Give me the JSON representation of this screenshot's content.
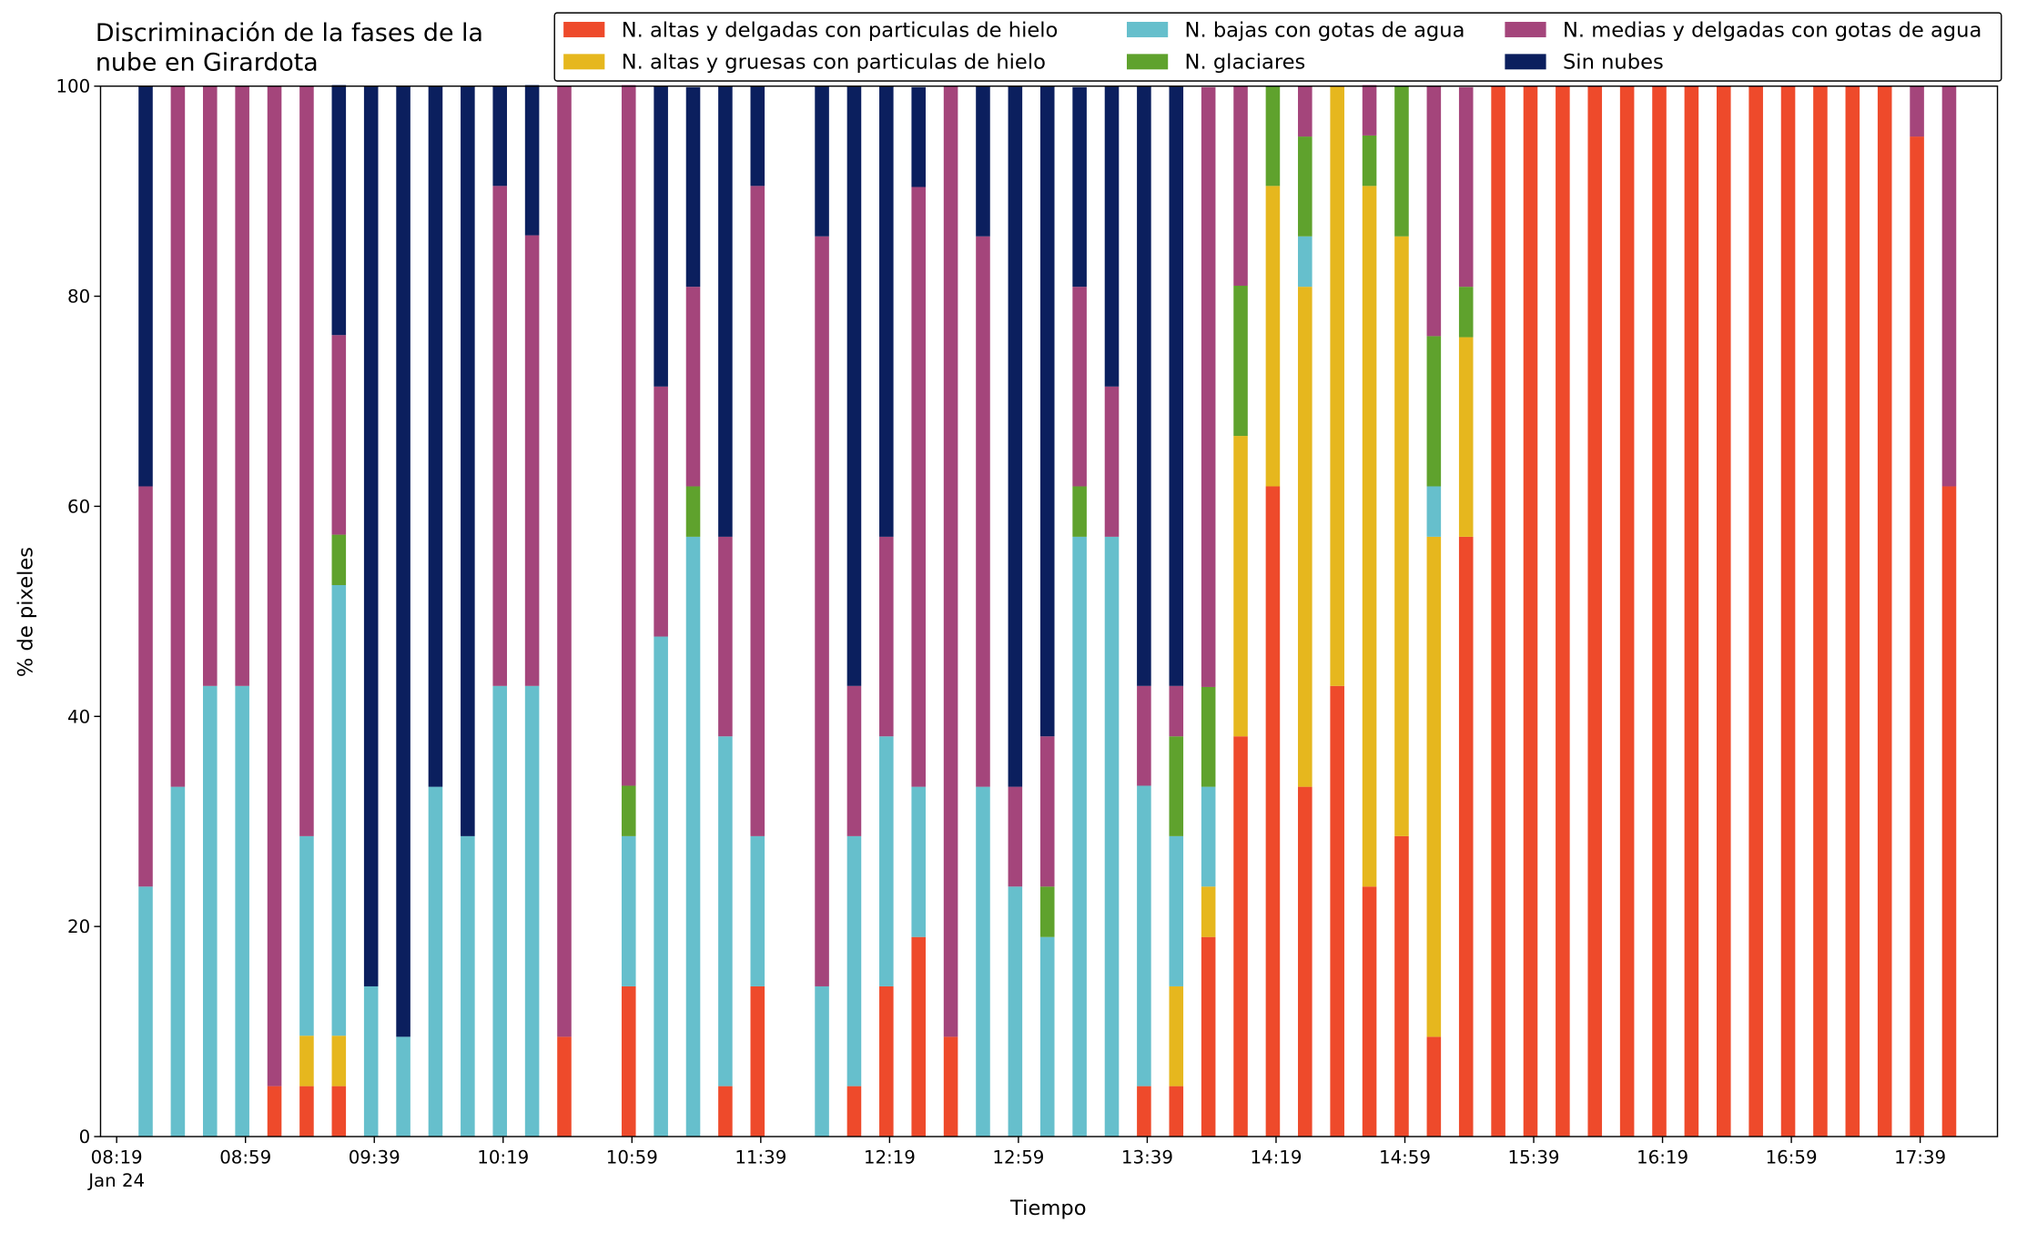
{
  "chart_data": {
    "type": "stacked_bar",
    "title": "Discriminación de la fases de la nube en Girardota",
    "xlabel": "Tiempo",
    "ylabel": "% de pixeles",
    "x": [
      "08:28",
      "08:38",
      "08:48",
      "08:58",
      "09:08",
      "09:18",
      "09:28",
      "09:38",
      "09:48",
      "09:58",
      "10:08",
      "10:18",
      "10:28",
      "10:38",
      "10:48",
      "10:58",
      "11:08",
      "11:18",
      "11:28",
      "11:38",
      "11:48",
      "11:58",
      "12:08",
      "12:18",
      "12:28",
      "12:38",
      "12:48",
      "12:58",
      "13:08",
      "13:18",
      "13:28",
      "13:38",
      "13:48",
      "13:58",
      "14:08",
      "14:18",
      "14:28",
      "14:38",
      "14:48",
      "14:58",
      "15:08",
      "15:18",
      "15:28",
      "15:38",
      "15:48",
      "15:58",
      "16:08",
      "16:18",
      "16:28",
      "16:38",
      "16:48",
      "16:58",
      "17:08",
      "17:18",
      "17:28",
      "17:38",
      "17:48"
    ],
    "xlim": [
      "08:14",
      "18:03"
    ],
    "xticks": [
      "08:19",
      "08:59",
      "09:39",
      "10:19",
      "10:59",
      "11:39",
      "12:19",
      "12:59",
      "13:39",
      "14:19",
      "14:59",
      "15:39",
      "16:19",
      "16:59",
      "17:39"
    ],
    "xtick_date": "Jan 24",
    "ylim": [
      0,
      100
    ],
    "yticks": [
      0,
      20,
      40,
      60,
      80,
      100
    ],
    "legend": "top-right",
    "series": [
      {
        "name": "N. altas y delgadas con particulas de hielo",
        "color": "#ee4a2b",
        "values": [
          0,
          0,
          0,
          0,
          4.8,
          4.8,
          4.8,
          0,
          0,
          0,
          0,
          0,
          0,
          9.5,
          null,
          14.3,
          0,
          0,
          4.8,
          14.3,
          null,
          0,
          4.8,
          14.3,
          19.0,
          9.5,
          0,
          0,
          0,
          0,
          0,
          4.8,
          4.8,
          19.0,
          38.1,
          61.9,
          33.3,
          42.9,
          23.8,
          28.6,
          9.5,
          57.1,
          100,
          100,
          100,
          100,
          100,
          100,
          100,
          100,
          100,
          100,
          100,
          100,
          100,
          95.2,
          61.9
        ]
      },
      {
        "name": "N. altas y gruesas con particulas de hielo",
        "color": "#e6b71e",
        "values": [
          0,
          0,
          0,
          0,
          0,
          4.8,
          4.8,
          0,
          0,
          0,
          0,
          0,
          0,
          0,
          null,
          0,
          0,
          0,
          0,
          0,
          null,
          0,
          0,
          0,
          0,
          0,
          0,
          0,
          0,
          0,
          0,
          0,
          9.5,
          4.8,
          28.6,
          28.6,
          47.6,
          57.1,
          66.7,
          57.1,
          47.6,
          19.0,
          0,
          0,
          0,
          0,
          0,
          0,
          0,
          0,
          0,
          0,
          0,
          0,
          0,
          0,
          0
        ]
      },
      {
        "name": "N. bajas con gotas de agua",
        "color": "#66bfcc",
        "values": [
          23.8,
          33.3,
          42.9,
          42.9,
          0,
          19.0,
          42.9,
          14.3,
          9.5,
          33.3,
          28.6,
          42.9,
          42.9,
          0,
          null,
          14.3,
          47.6,
          57.1,
          33.3,
          14.3,
          null,
          14.3,
          23.8,
          23.8,
          14.3,
          0,
          33.3,
          23.8,
          19.0,
          57.1,
          57.1,
          28.6,
          14.3,
          9.5,
          0,
          0,
          4.8,
          0,
          0,
          0,
          4.8,
          0,
          0,
          0,
          0,
          0,
          0,
          0,
          0,
          0,
          0,
          0,
          0,
          0,
          0,
          0,
          0
        ]
      },
      {
        "name": "N. glaciares",
        "color": "#5fa22d",
        "values": [
          0,
          0,
          0,
          0,
          0,
          0,
          4.8,
          0,
          0,
          0,
          0,
          0,
          0,
          0,
          null,
          4.8,
          0,
          4.8,
          0,
          0,
          null,
          0,
          0,
          0,
          0,
          0,
          0,
          0,
          4.8,
          4.8,
          0,
          0,
          9.5,
          9.5,
          14.3,
          9.5,
          9.5,
          0,
          4.8,
          14.3,
          14.3,
          4.8,
          0,
          0,
          0,
          0,
          0,
          0,
          0,
          0,
          0,
          0,
          0,
          0,
          0,
          0,
          0
        ]
      },
      {
        "name": "N. medias y delgadas con gotas de agua",
        "color": "#a4457b",
        "values": [
          38.1,
          66.7,
          57.1,
          57.1,
          95.2,
          71.4,
          19.0,
          0,
          0,
          0,
          0,
          47.6,
          42.9,
          90.5,
          null,
          66.7,
          23.8,
          19.0,
          19.0,
          61.9,
          null,
          71.4,
          14.3,
          19.0,
          57.1,
          90.5,
          52.4,
          9.5,
          14.3,
          19.0,
          14.3,
          9.5,
          4.8,
          57.1,
          19.0,
          0,
          4.8,
          0,
          4.8,
          0,
          23.8,
          19.0,
          0,
          0,
          0,
          0,
          0,
          0,
          0,
          0,
          0,
          0,
          0,
          0,
          0,
          4.8,
          38.1
        ]
      },
      {
        "name": "Sin nubes",
        "color": "#0b1f5e",
        "values": [
          38.1,
          0,
          0,
          0,
          0,
          0,
          23.8,
          85.7,
          90.5,
          66.7,
          71.4,
          9.5,
          14.3,
          0,
          null,
          0,
          28.6,
          19.0,
          42.9,
          9.5,
          null,
          14.3,
          57.1,
          42.9,
          9.5,
          0,
          14.3,
          66.7,
          61.9,
          19.0,
          28.6,
          57.1,
          57.1,
          0,
          0,
          0,
          0,
          0,
          0,
          0,
          0,
          0,
          0,
          0,
          0,
          0,
          0,
          0,
          0,
          0,
          0,
          0,
          0,
          0,
          0,
          0,
          0
        ]
      }
    ]
  }
}
